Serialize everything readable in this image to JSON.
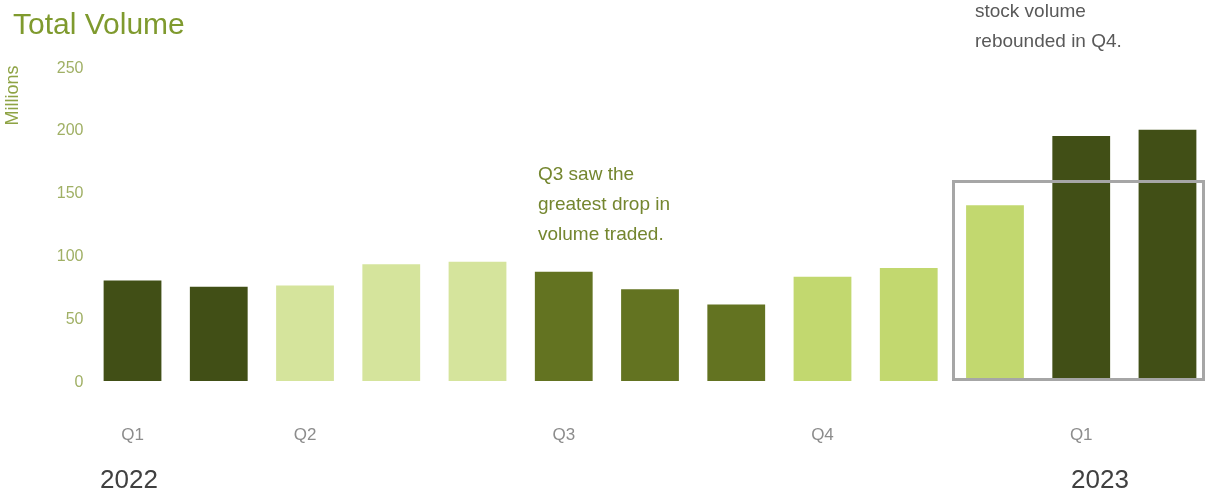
{
  "chart_data": {
    "type": "bar",
    "title": "Total Volume",
    "ylabel": "Millions",
    "categories": [
      "Q1",
      null,
      "Q2",
      null,
      null,
      "Q3",
      null,
      null,
      "Q4",
      null,
      null,
      "Q1",
      null
    ],
    "values": [
      80,
      75,
      76,
      93,
      95,
      87,
      73,
      61,
      83,
      90,
      140,
      195,
      200
    ],
    "colors": [
      "#414f16",
      "#414f16",
      "#d5e49c",
      "#d5e49c",
      "#d5e49c",
      "#637321",
      "#637321",
      "#637321",
      "#c2d86f",
      "#c2d86f",
      "#c2d86f",
      "#414f16",
      "#414f16"
    ],
    "ylim": [
      0,
      250
    ],
    "yticks": [
      0,
      50,
      100,
      150,
      200,
      250
    ],
    "annotations": [
      "Q3 saw the\ngreatest drop in\nvolume traded.",
      "stock volume\nrebounded in Q4.",
      "2022",
      "2023"
    ]
  }
}
